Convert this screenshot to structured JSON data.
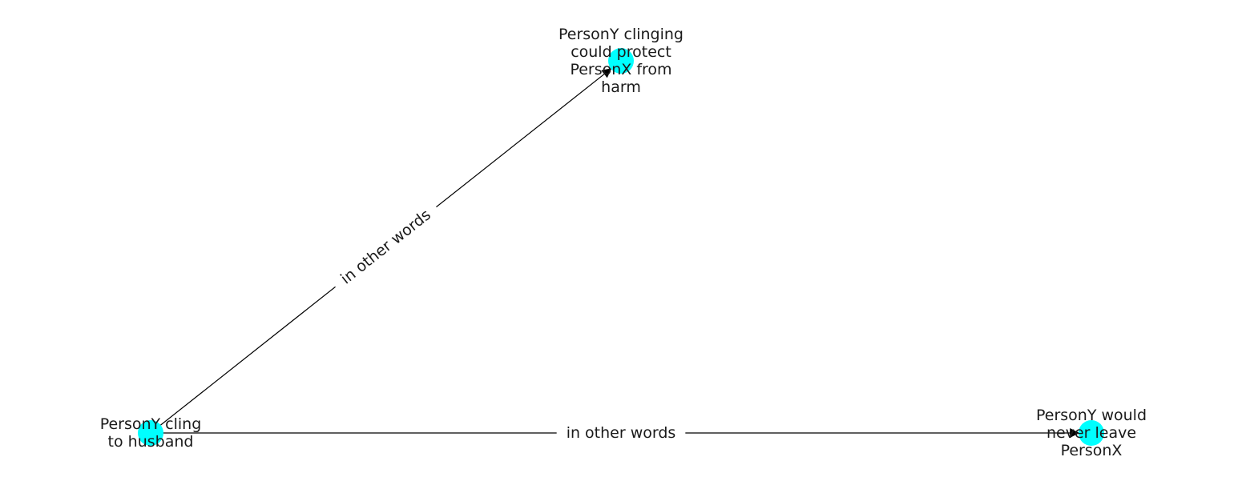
{
  "colors": {
    "node_fill": "#00FFFF",
    "edge": "#000000",
    "text": "#1a1a1a"
  },
  "nodes": [
    {
      "id": "n1",
      "lines": [
        "PersonY cling",
        "to husband"
      ]
    },
    {
      "id": "n2",
      "lines": [
        "PersonY clinging",
        "could protect",
        "PersonX from",
        "harm"
      ]
    },
    {
      "id": "n3",
      "lines": [
        "PersonY would",
        "never leave",
        "PersonX"
      ]
    }
  ],
  "edges": [
    {
      "from": "n1",
      "to": "n2",
      "label": "in other words"
    },
    {
      "from": "n1",
      "to": "n3",
      "label": "in other words"
    }
  ]
}
